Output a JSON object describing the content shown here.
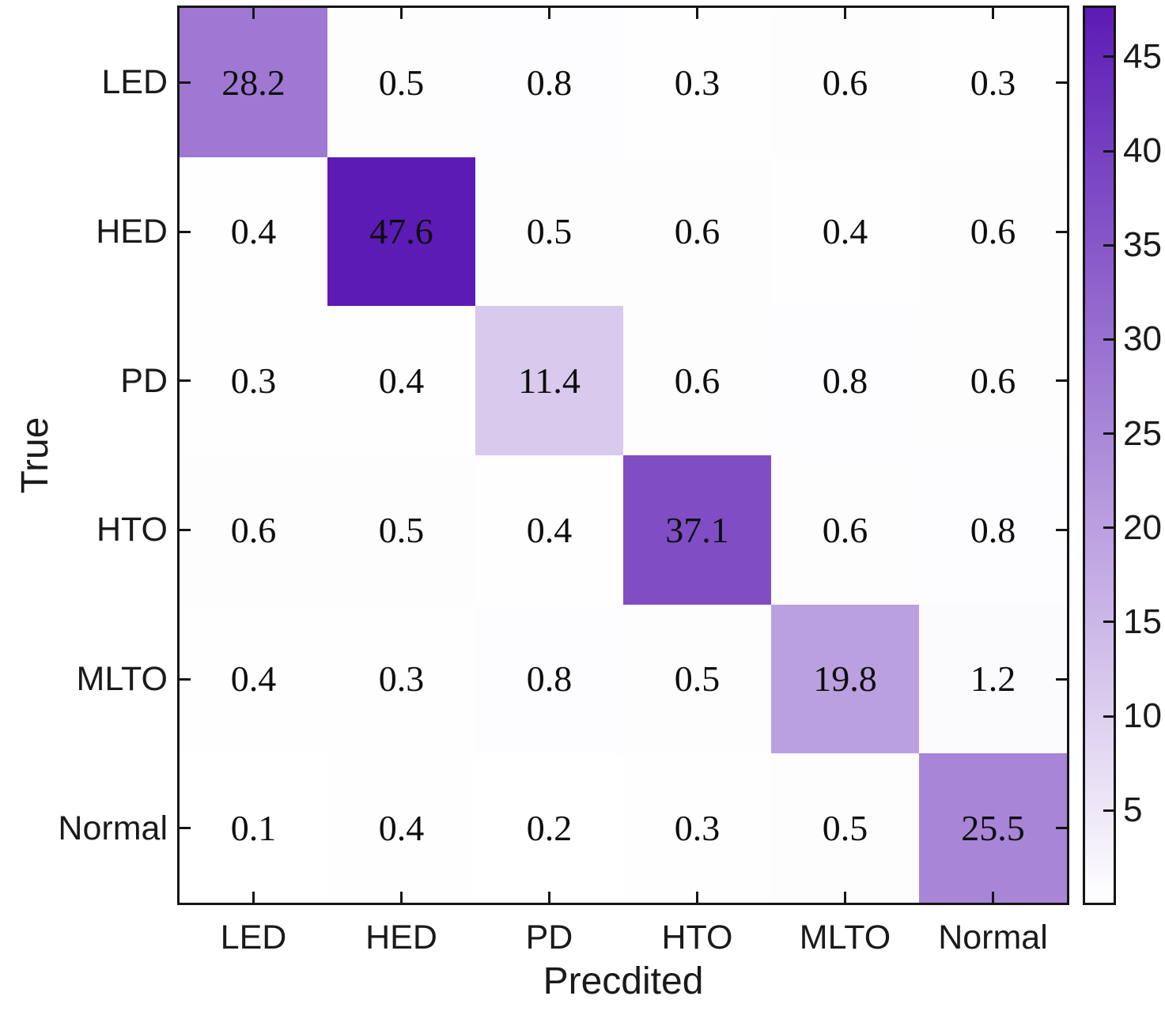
{
  "chart_data": {
    "type": "heatmap",
    "title": "",
    "xlabel": "Precdited",
    "ylabel": "True",
    "x_categories": [
      "LED",
      "HED",
      "PD",
      "HTO",
      "MLTO",
      "Normal"
    ],
    "y_categories": [
      "LED",
      "HED",
      "PD",
      "HTO",
      "MLTO",
      "Normal"
    ],
    "matrix": [
      [
        28.2,
        0.5,
        0.8,
        0.3,
        0.6,
        0.3
      ],
      [
        0.4,
        47.6,
        0.5,
        0.6,
        0.4,
        0.6
      ],
      [
        0.3,
        0.4,
        11.4,
        0.6,
        0.8,
        0.6
      ],
      [
        0.6,
        0.5,
        0.4,
        37.1,
        0.6,
        0.8
      ],
      [
        0.4,
        0.3,
        0.8,
        0.5,
        19.8,
        1.2
      ],
      [
        0.1,
        0.4,
        0.2,
        0.3,
        0.5,
        25.5
      ]
    ],
    "value_decimals": 1,
    "colorscale": {
      "min": 0.1,
      "max": 47.6,
      "low_color": "#ffffff",
      "high_color": "#5c1bb5"
    },
    "colorbar": {
      "position": "right",
      "ticks": [
        5,
        10,
        15,
        20,
        25,
        30,
        35,
        40,
        45
      ]
    },
    "legend": "none",
    "grid": false,
    "axis_color": "#151515",
    "text_color": "#1a1a1a",
    "cell_text_color": "#0d0d0d",
    "background_color": "#ffffff"
  }
}
